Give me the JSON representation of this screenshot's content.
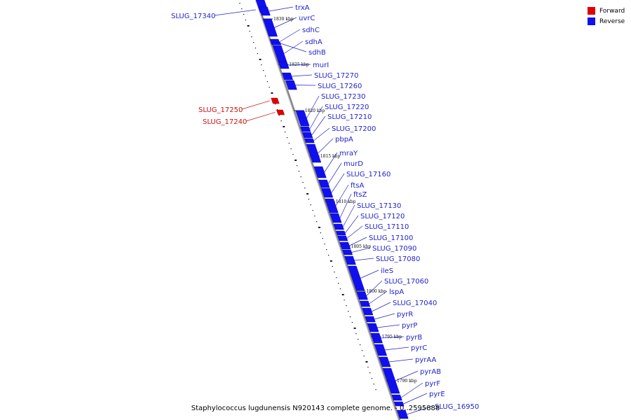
{
  "legend": {
    "forward_label": "Forward",
    "reverse_label": "Reverse",
    "forward_color": "#e00000",
    "reverse_color": "#1010ee"
  },
  "caption": "Staphylococcus lugdunensis N920143 complete genome. - 0..2595888",
  "colors": {
    "backbone": "#888888",
    "forward": "#e00000",
    "reverse": "#1010ee",
    "reverse_label": "#2222cc",
    "forward_label": "#cc1111"
  },
  "ticks": [
    "1830 kbp",
    "1825 kbp",
    "1820 kbp",
    "1815 kbp",
    "1810 kbp",
    "1805 kbp",
    "1800 kbp",
    "1795 kbp",
    "1790 kbp"
  ],
  "genes": [
    {
      "name": "SLUG_17340",
      "strand": "reverse"
    },
    {
      "name": "trxA",
      "strand": "reverse"
    },
    {
      "name": "uvrC",
      "strand": "reverse"
    },
    {
      "name": "sdhC",
      "strand": "reverse"
    },
    {
      "name": "sdhA",
      "strand": "reverse"
    },
    {
      "name": "sdhB",
      "strand": "reverse"
    },
    {
      "name": "murI",
      "strand": "reverse"
    },
    {
      "name": "SLUG_17270",
      "strand": "reverse"
    },
    {
      "name": "SLUG_17260",
      "strand": "reverse"
    },
    {
      "name": "SLUG_17250",
      "strand": "forward"
    },
    {
      "name": "SLUG_17240",
      "strand": "forward"
    },
    {
      "name": "SLUG_17230",
      "strand": "reverse"
    },
    {
      "name": "SLUG_17220",
      "strand": "reverse"
    },
    {
      "name": "SLUG_17210",
      "strand": "reverse"
    },
    {
      "name": "SLUG_17200",
      "strand": "reverse"
    },
    {
      "name": "pbpA",
      "strand": "reverse"
    },
    {
      "name": "mraY",
      "strand": "reverse"
    },
    {
      "name": "murD",
      "strand": "reverse"
    },
    {
      "name": "SLUG_17160",
      "strand": "reverse"
    },
    {
      "name": "ftsA",
      "strand": "reverse"
    },
    {
      "name": "ftsZ",
      "strand": "reverse"
    },
    {
      "name": "SLUG_17130",
      "strand": "reverse"
    },
    {
      "name": "SLUG_17120",
      "strand": "reverse"
    },
    {
      "name": "SLUG_17110",
      "strand": "reverse"
    },
    {
      "name": "SLUG_17100",
      "strand": "reverse"
    },
    {
      "name": "SLUG_17090",
      "strand": "reverse"
    },
    {
      "name": "SLUG_17080",
      "strand": "reverse"
    },
    {
      "name": "ileS",
      "strand": "reverse"
    },
    {
      "name": "SLUG_17060",
      "strand": "reverse"
    },
    {
      "name": "lspA",
      "strand": "reverse"
    },
    {
      "name": "SLUG_17040",
      "strand": "reverse"
    },
    {
      "name": "pyrR",
      "strand": "reverse"
    },
    {
      "name": "pyrP",
      "strand": "reverse"
    },
    {
      "name": "pyrB",
      "strand": "reverse"
    },
    {
      "name": "pyrC",
      "strand": "reverse"
    },
    {
      "name": "pyrAA",
      "strand": "reverse"
    },
    {
      "name": "pyrAB",
      "strand": "reverse"
    },
    {
      "name": "pyrF",
      "strand": "reverse"
    },
    {
      "name": "pyrE",
      "strand": "reverse"
    },
    {
      "name": "SLUG_16950",
      "strand": "reverse"
    }
  ]
}
